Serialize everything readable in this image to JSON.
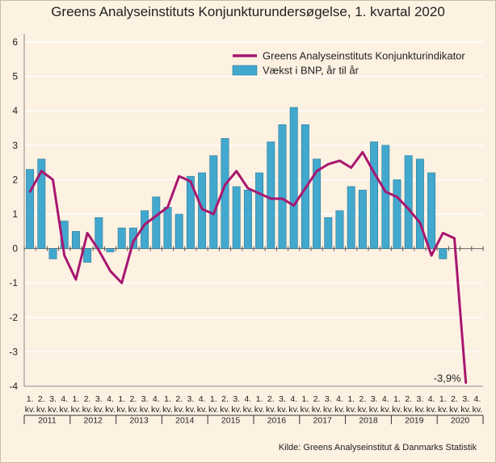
{
  "title": "Greens Analyseinstituts Konjunkturundersøgelse, 1. kvartal 2020",
  "source": "Kilde: Greens Analyseinstitut & Danmarks Statistik",
  "colors": {
    "background": "#fdf1e2",
    "line": "#a8166f",
    "bar": "#42a8ce",
    "bar_border": "#1f6d8c",
    "grid": "#ffffff",
    "axis": "#333333"
  },
  "chart_data": {
    "type": "bar",
    "title": "Greens Analyseinstituts Konjunkturundersøgelse, 1. kvartal 2020",
    "xlabel": "",
    "ylabel": "",
    "ylim": [
      -4,
      6
    ],
    "yticks": [
      -4,
      -3,
      -2,
      -1,
      0,
      1,
      2,
      3,
      4,
      5,
      6
    ],
    "grid": true,
    "legend_position": "top-right",
    "quarter_labels": [
      "1.\nkv.",
      "2.\nkv.",
      "3.\nkv.",
      "4.\nkv."
    ],
    "years": [
      "2011",
      "2012",
      "2013",
      "2014",
      "2015",
      "2016",
      "2017",
      "2018",
      "2019",
      "2020"
    ],
    "categories": [
      "2011 Q1",
      "2011 Q2",
      "2011 Q3",
      "2011 Q4",
      "2012 Q1",
      "2012 Q2",
      "2012 Q3",
      "2012 Q4",
      "2013 Q1",
      "2013 Q2",
      "2013 Q3",
      "2013 Q4",
      "2014 Q1",
      "2014 Q2",
      "2014 Q3",
      "2014 Q4",
      "2015 Q1",
      "2015 Q2",
      "2015 Q3",
      "2015 Q4",
      "2016 Q1",
      "2016 Q2",
      "2016 Q3",
      "2016 Q4",
      "2017 Q1",
      "2017 Q2",
      "2017 Q3",
      "2017 Q4",
      "2018 Q1",
      "2018 Q2",
      "2018 Q3",
      "2018 Q4",
      "2019 Q1",
      "2019 Q2",
      "2019 Q3",
      "2019 Q4",
      "2020 Q1",
      "2020 Q2",
      "2020 Q3",
      "2020 Q4"
    ],
    "series": [
      {
        "name": "Vækst i BNP, år til år",
        "type": "bar",
        "values": [
          2.3,
          2.6,
          -0.3,
          0.8,
          0.5,
          -0.4,
          0.9,
          -0.1,
          0.6,
          0.6,
          1.1,
          1.5,
          1.2,
          1.0,
          2.1,
          2.2,
          2.7,
          3.2,
          1.8,
          1.7,
          2.2,
          3.1,
          3.6,
          4.1,
          3.6,
          2.6,
          0.9,
          1.1,
          1.8,
          1.7,
          3.1,
          3.0,
          2.0,
          2.7,
          2.6,
          2.2,
          -0.3,
          null,
          null,
          null
        ]
      },
      {
        "name": "Greens Analyseinstituts Konjunkturindikator",
        "type": "line",
        "values": [
          1.65,
          2.25,
          2.0,
          -0.2,
          -0.9,
          0.45,
          -0.05,
          -0.65,
          -1.0,
          0.2,
          0.7,
          0.95,
          1.2,
          2.1,
          1.95,
          1.15,
          1.0,
          1.85,
          2.25,
          1.75,
          1.6,
          1.45,
          1.45,
          1.25,
          1.75,
          2.25,
          2.45,
          2.55,
          2.35,
          2.8,
          2.2,
          1.65,
          1.5,
          1.15,
          0.75,
          -0.2,
          0.45,
          0.3,
          -3.9,
          null
        ]
      }
    ],
    "annotations": [
      {
        "text": "-3,9%",
        "series": "Greens Analyseinstituts Konjunkturindikator",
        "category": "2020 Q3"
      }
    ]
  }
}
